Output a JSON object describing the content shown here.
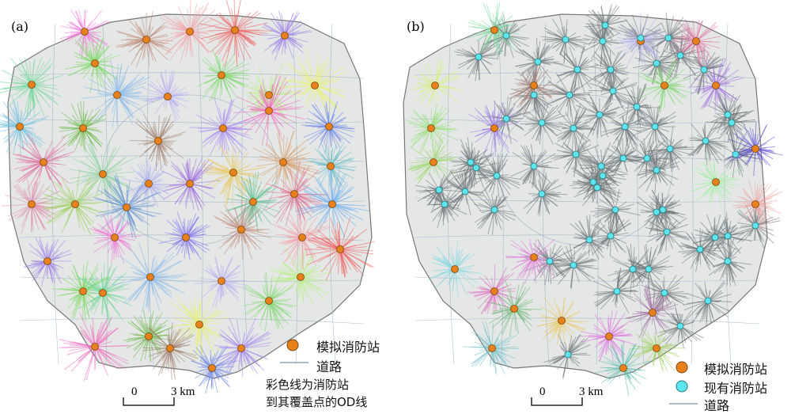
{
  "panels": [
    {
      "id": "a",
      "label": "(a)"
    },
    {
      "id": "b",
      "label": "(b)"
    }
  ],
  "legend": {
    "simulated_station": "模拟消防站",
    "existing_station": "现有消防站",
    "road": "道路"
  },
  "note_line1": "彩色线为消防站",
  "note_line2": "到其覆盖点的OD线",
  "scalebar": {
    "zero": "0",
    "distance": "3 km"
  },
  "colors": {
    "simulated_station": "#e8801c",
    "existing_station": "#5ee6ef",
    "road": "#8fa6bf",
    "study_area_fill": "#e4e7e6",
    "existing_coverage": "#6e7678",
    "boundary": "#777777"
  }
}
